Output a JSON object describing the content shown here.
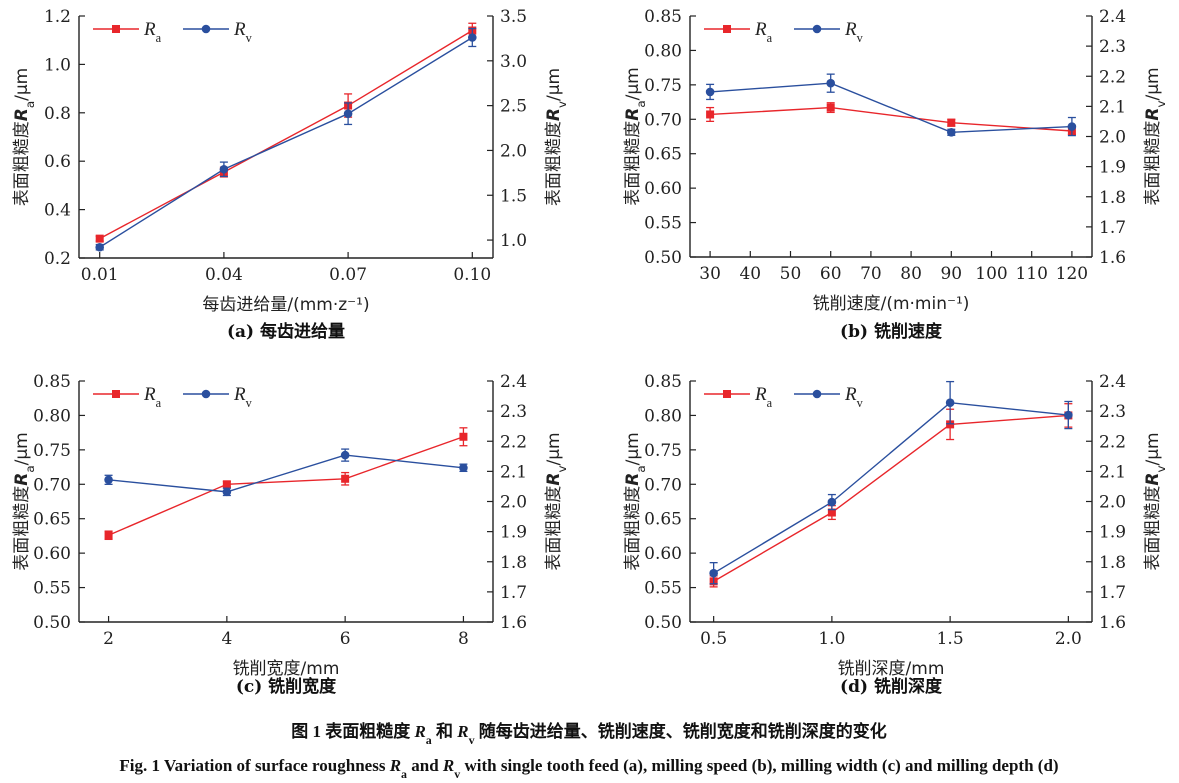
{
  "colors": {
    "Ra": "#e8262b",
    "Rv": "#2a4f9e",
    "axis": "#222222"
  },
  "caption": {
    "cn": "图 1   表面粗糙度 Ra 和 Rv 随每齿进给量、铣削速度、铣削宽度和铣削深度的变化",
    "en": "Fig. 1   Variation of surface roughness Ra and Rv with single tooth feed (a), milling speed (b), milling width (c) and milling depth (d)"
  },
  "chart_data": [
    {
      "type": "line",
      "subtitle": "(a) 每齿进给量",
      "xlabel": "每齿进给量/(mm·z⁻¹)",
      "ylabel": "表面粗糙度Ra/μm",
      "y2label": "表面粗糙度Rv/μm",
      "x": [
        0.01,
        0.04,
        0.07,
        0.1
      ],
      "xticks": [
        "0.01",
        "0.04",
        "0.07",
        "0.10"
      ],
      "xlim": [
        0.005,
        0.105
      ],
      "ylim": [
        0.2,
        1.2
      ],
      "yticks": [
        "0.2",
        "0.4",
        "0.6",
        "0.8",
        "1.0",
        "1.2"
      ],
      "y2lim": [
        0.8,
        3.5
      ],
      "y2ticks": [
        "1.0",
        "1.5",
        "2.0",
        "2.5",
        "3.0",
        "3.5"
      ],
      "legend": "top-left",
      "series": [
        {
          "name": "Ra",
          "axis": "left",
          "marker": "square",
          "values": [
            0.28,
            0.555,
            0.83,
            1.14
          ],
          "errors": [
            0.01,
            0.02,
            0.048,
            0.03
          ]
        },
        {
          "name": "Rv",
          "axis": "right",
          "marker": "circle",
          "values": [
            0.92,
            1.79,
            2.41,
            3.26
          ],
          "errors": [
            0.03,
            0.08,
            0.12,
            0.1
          ]
        }
      ]
    },
    {
      "type": "line",
      "subtitle": "(b) 铣削速度",
      "xlabel": "铣削速度/(m·min⁻¹)",
      "ylabel": "表面粗糙度Ra/μm",
      "y2label": "表面粗糙度Rv/μm",
      "x": [
        30,
        60,
        90,
        120
      ],
      "xticks": [
        "30",
        "40",
        "50",
        "60",
        "70",
        "80",
        "90",
        "100",
        "110",
        "120"
      ],
      "xlim": [
        25,
        125
      ],
      "ylim": [
        0.5,
        0.85
      ],
      "yticks": [
        "0.50",
        "0.55",
        "0.60",
        "0.65",
        "0.70",
        "0.75",
        "0.80",
        "0.85"
      ],
      "y2lim": [
        1.6,
        2.4
      ],
      "y2ticks": [
        "1.6",
        "1.7",
        "1.8",
        "1.9",
        "2.0",
        "2.1",
        "2.2",
        "2.3",
        "2.4"
      ],
      "legend": "top-left",
      "series": [
        {
          "name": "Ra",
          "axis": "left",
          "marker": "square",
          "values": [
            0.707,
            0.717,
            0.695,
            0.683
          ],
          "errors": [
            0.01,
            0.007,
            0.005,
            0.005
          ]
        },
        {
          "name": "Rv",
          "axis": "right",
          "marker": "circle",
          "values": [
            2.148,
            2.177,
            2.014,
            2.033
          ],
          "errors": [
            0.025,
            0.03,
            0.01,
            0.03
          ]
        }
      ]
    },
    {
      "type": "line",
      "subtitle": "(c) 铣削宽度",
      "xlabel": "铣削宽度/mm",
      "ylabel": "表面粗糙度Ra/μm",
      "y2label": "表面粗糙度Rv/μm",
      "x": [
        2,
        4,
        6,
        8
      ],
      "xticks": [
        "2",
        "4",
        "6",
        "8"
      ],
      "xlim": [
        1.5,
        8.5
      ],
      "ylim": [
        0.5,
        0.85
      ],
      "yticks": [
        "0.50",
        "0.55",
        "0.60",
        "0.65",
        "0.70",
        "0.75",
        "0.80",
        "0.85"
      ],
      "y2lim": [
        1.6,
        2.4
      ],
      "y2ticks": [
        "1.6",
        "1.7",
        "1.8",
        "1.9",
        "2.0",
        "2.1",
        "2.2",
        "2.3",
        "2.4"
      ],
      "legend": "top-left",
      "series": [
        {
          "name": "Ra",
          "axis": "left",
          "marker": "square",
          "values": [
            0.626,
            0.7,
            0.708,
            0.769
          ],
          "errors": [
            0.006,
            0.004,
            0.009,
            0.013
          ]
        },
        {
          "name": "Rv",
          "axis": "right",
          "marker": "circle",
          "values": [
            2.072,
            2.032,
            2.154,
            2.112
          ],
          "errors": [
            0.015,
            0.012,
            0.02,
            0.012
          ]
        }
      ]
    },
    {
      "type": "line",
      "subtitle": "(d) 铣削深度",
      "xlabel": "铣削深度/mm",
      "ylabel": "表面粗糙度Ra/μm",
      "y2label": "表面粗糙度Rv/μm",
      "x": [
        0.5,
        1.0,
        1.5,
        2.0
      ],
      "xticks": [
        "0.5",
        "1.0",
        "1.5",
        "2.0"
      ],
      "xlim": [
        0.4,
        2.1
      ],
      "ylim": [
        0.5,
        0.85
      ],
      "yticks": [
        "0.50",
        "0.55",
        "0.60",
        "0.65",
        "0.70",
        "0.75",
        "0.80",
        "0.85"
      ],
      "y2lim": [
        1.6,
        2.4
      ],
      "y2ticks": [
        "1.6",
        "1.7",
        "1.8",
        "1.9",
        "2.0",
        "2.1",
        "2.2",
        "2.3",
        "2.4"
      ],
      "legend": "top-left",
      "series": [
        {
          "name": "Ra",
          "axis": "left",
          "marker": "square",
          "values": [
            0.559,
            0.659,
            0.787,
            0.8
          ],
          "errors": [
            0.008,
            0.01,
            0.022,
            0.017
          ]
        },
        {
          "name": "Rv",
          "axis": "right",
          "marker": "circle",
          "values": [
            1.762,
            1.998,
            2.328,
            2.287
          ],
          "errors": [
            0.035,
            0.025,
            0.07,
            0.045
          ]
        }
      ]
    }
  ]
}
